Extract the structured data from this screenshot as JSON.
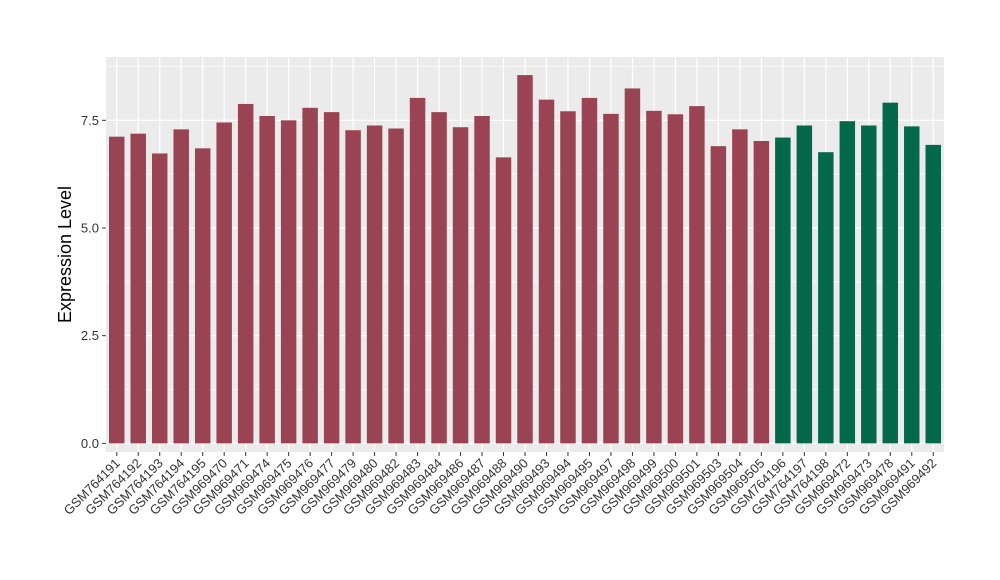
{
  "chart_data": {
    "type": "bar",
    "title": "",
    "xlabel": "",
    "ylabel": "Expression Level",
    "ylim": [
      -0.2,
      8.97
    ],
    "yticks": [
      0.0,
      2.5,
      5.0,
      7.5
    ],
    "ytick_labels": [
      "0.0",
      "2.5",
      "5.0",
      "7.5"
    ],
    "grid": true,
    "panel_background": "#ebebeb",
    "grid_color": "#ffffff",
    "colors": {
      "group_1": "#9a4352",
      "group_2": "#03694a"
    },
    "legend": "none",
    "categories": [
      "GSM764191",
      "GSM764192",
      "GSM764193",
      "GSM764194",
      "GSM764195",
      "GSM969470",
      "GSM969471",
      "GSM969474",
      "GSM969475",
      "GSM969476",
      "GSM969477",
      "GSM969479",
      "GSM969480",
      "GSM969482",
      "GSM969483",
      "GSM969484",
      "GSM969486",
      "GSM969487",
      "GSM969488",
      "GSM969490",
      "GSM969493",
      "GSM969494",
      "GSM969495",
      "GSM969497",
      "GSM969498",
      "GSM969499",
      "GSM969500",
      "GSM969501",
      "GSM969503",
      "GSM969504",
      "GSM969505",
      "GSM764196",
      "GSM764197",
      "GSM764198",
      "GSM969472",
      "GSM969473",
      "GSM969478",
      "GSM969491",
      "GSM969492"
    ],
    "values": [
      7.12,
      7.19,
      6.73,
      7.29,
      6.85,
      7.45,
      7.88,
      7.6,
      7.5,
      7.79,
      7.69,
      7.27,
      7.38,
      7.31,
      8.02,
      7.69,
      7.34,
      7.6,
      6.64,
      8.55,
      7.98,
      7.71,
      8.02,
      7.65,
      8.24,
      7.72,
      7.64,
      7.83,
      6.9,
      7.29,
      7.02,
      7.1,
      7.38,
      6.76,
      7.48,
      7.38,
      7.91,
      7.36,
      6.93
    ],
    "groups": [
      1,
      1,
      1,
      1,
      1,
      1,
      1,
      1,
      1,
      1,
      1,
      1,
      1,
      1,
      1,
      1,
      1,
      1,
      1,
      1,
      1,
      1,
      1,
      1,
      1,
      1,
      1,
      1,
      1,
      1,
      1,
      2,
      2,
      2,
      2,
      2,
      2,
      2,
      2
    ]
  }
}
